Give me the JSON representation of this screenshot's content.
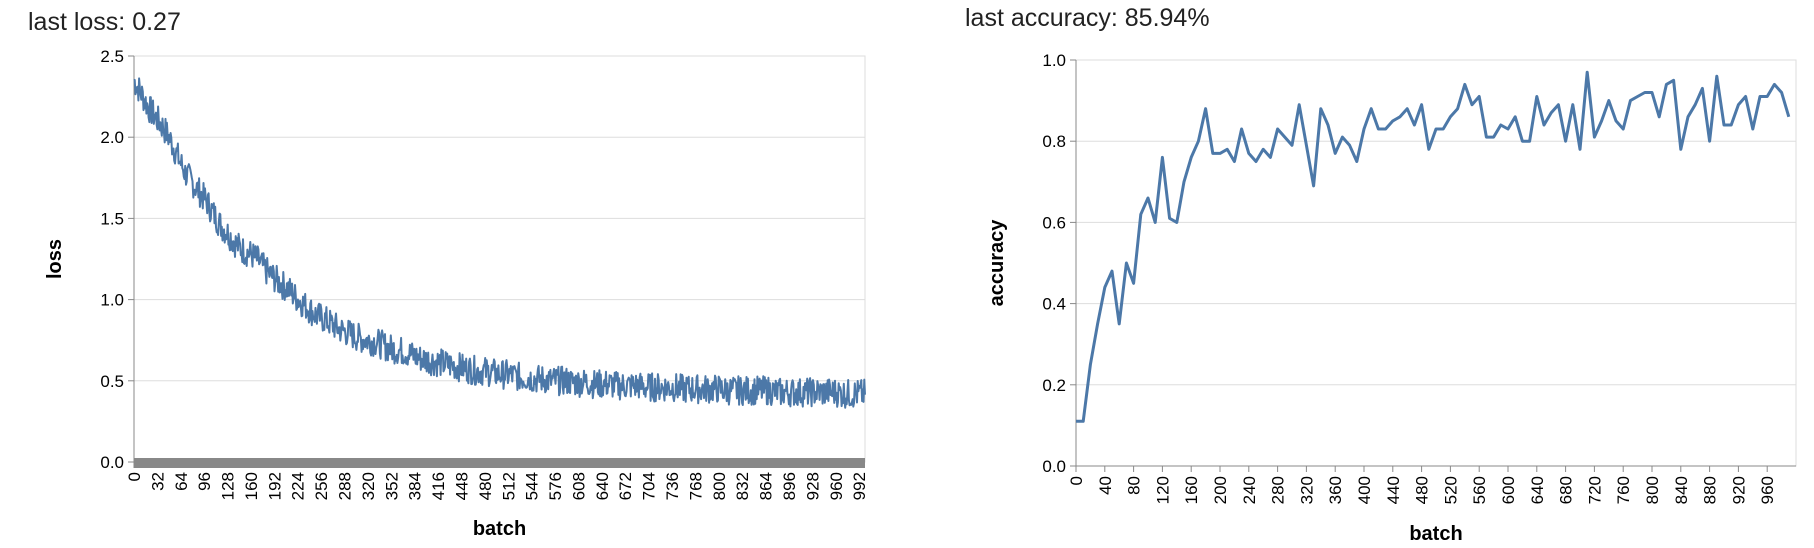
{
  "loss_panel": {
    "headline": "last loss: 0.27"
  },
  "accuracy_panel": {
    "headline": "last accuracy: 85.94%"
  },
  "colors": {
    "line": "#4c78a8",
    "grid": "#dddddd",
    "axis": "#888888",
    "zero_band": "#888888"
  },
  "chart_data": [
    {
      "type": "line",
      "xlabel": "batch",
      "ylabel": "loss",
      "x_domain": [
        0,
        1000
      ],
      "ylim": [
        0,
        2.5
      ],
      "grid": true,
      "y_ticks": [
        "0.0",
        "0.5",
        "1.0",
        "1.5",
        "2.0",
        "2.5"
      ],
      "x_ticks": [
        "0",
        "32",
        "64",
        "96",
        "128",
        "160",
        "192",
        "224",
        "256",
        "288",
        "320",
        "352",
        "384",
        "416",
        "448",
        "480",
        "512",
        "544",
        "576",
        "608",
        "640",
        "672",
        "704",
        "736",
        "768",
        "800",
        "832",
        "864",
        "896",
        "928",
        "960",
        "992"
      ],
      "series": [
        {
          "x_start": 0,
          "x_end": 1000,
          "x_step": 10,
          "y": [
            2.35,
            2.27,
            2.18,
            2.12,
            2.06,
            1.98,
            1.88,
            1.78,
            1.72,
            1.66,
            1.6,
            1.52,
            1.45,
            1.4,
            1.34,
            1.3,
            1.28,
            1.24,
            1.18,
            1.14,
            1.1,
            1.07,
            1.02,
            0.98,
            0.94,
            0.9,
            0.88,
            0.85,
            0.82,
            0.8,
            0.78,
            0.76,
            0.75,
            0.74,
            0.72,
            0.7,
            0.69,
            0.68,
            0.66,
            0.64,
            0.63,
            0.62,
            0.61,
            0.6,
            0.59,
            0.58,
            0.57,
            0.56,
            0.56,
            0.55,
            0.54,
            0.54,
            0.53,
            0.52,
            0.52,
            0.51,
            0.51,
            0.5,
            0.5,
            0.5,
            0.49,
            0.49,
            0.49,
            0.48,
            0.48,
            0.48,
            0.47,
            0.47,
            0.47,
            0.47,
            0.46,
            0.46,
            0.46,
            0.46,
            0.46,
            0.45,
            0.45,
            0.45,
            0.45,
            0.45,
            0.45,
            0.44,
            0.44,
            0.44,
            0.44,
            0.44,
            0.44,
            0.44,
            0.43,
            0.43,
            0.43,
            0.43,
            0.43,
            0.43,
            0.43,
            0.43,
            0.43,
            0.42,
            0.42,
            0.42,
            0.42
          ],
          "noise_amplitude": 0.09
        }
      ]
    },
    {
      "type": "line",
      "xlabel": "batch",
      "ylabel": "accuracy",
      "x_domain": [
        0,
        1000
      ],
      "ylim": [
        0,
        1
      ],
      "grid": true,
      "y_ticks": [
        "0.0",
        "0.2",
        "0.4",
        "0.6",
        "0.8",
        "1.0"
      ],
      "x_ticks": [
        "0",
        "40",
        "80",
        "120",
        "160",
        "200",
        "240",
        "280",
        "320",
        "360",
        "400",
        "440",
        "480",
        "520",
        "560",
        "600",
        "640",
        "680",
        "720",
        "760",
        "800",
        "840",
        "880",
        "920",
        "960"
      ],
      "series": [
        {
          "x_start": 0,
          "x_end": 1000,
          "x_step": 10,
          "y": [
            0.11,
            0.11,
            0.25,
            0.35,
            0.44,
            0.48,
            0.35,
            0.5,
            0.45,
            0.62,
            0.66,
            0.6,
            0.76,
            0.61,
            0.6,
            0.7,
            0.76,
            0.8,
            0.88,
            0.77,
            0.77,
            0.78,
            0.75,
            0.83,
            0.77,
            0.75,
            0.78,
            0.76,
            0.83,
            0.81,
            0.79,
            0.89,
            0.79,
            0.69,
            0.88,
            0.84,
            0.77,
            0.81,
            0.79,
            0.75,
            0.83,
            0.88,
            0.83,
            0.83,
            0.85,
            0.86,
            0.88,
            0.84,
            0.89,
            0.78,
            0.83,
            0.83,
            0.86,
            0.88,
            0.94,
            0.89,
            0.91,
            0.81,
            0.81,
            0.84,
            0.83,
            0.86,
            0.8,
            0.8,
            0.91,
            0.84,
            0.87,
            0.89,
            0.8,
            0.89,
            0.78,
            0.97,
            0.81,
            0.85,
            0.9,
            0.85,
            0.83,
            0.9,
            0.91,
            0.92,
            0.92,
            0.86,
            0.94,
            0.95,
            0.78,
            0.86,
            0.89,
            0.93,
            0.8,
            0.96,
            0.84,
            0.84,
            0.89,
            0.91,
            0.83,
            0.91,
            0.91,
            0.94,
            0.92,
            0.86
          ]
        }
      ]
    }
  ]
}
